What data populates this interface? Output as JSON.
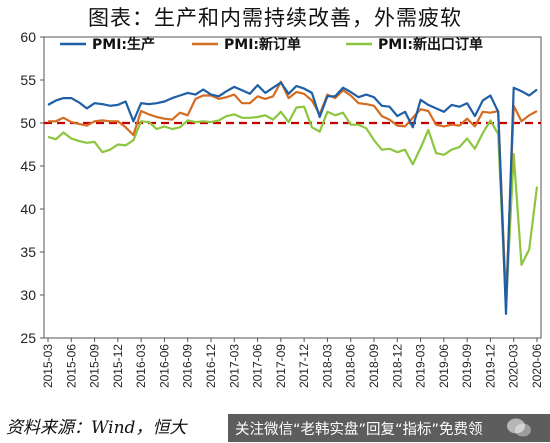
{
  "title": "图表：生产和内需持续改善，外需疲软",
  "source_text": "资料来源：Wind，恒大",
  "footer_overlay_text": "关注微信“老韩实盘”回复“指标”免费领",
  "icons": {
    "watermark": "wechat-logo-icon"
  },
  "chart_data": {
    "type": "line",
    "x": [
      "2015-03",
      "2015-04",
      "2015-05",
      "2015-06",
      "2015-07",
      "2015-08",
      "2015-09",
      "2015-10",
      "2015-11",
      "2015-12",
      "2016-01",
      "2016-02",
      "2016-03",
      "2016-04",
      "2016-05",
      "2016-06",
      "2016-07",
      "2016-08",
      "2016-09",
      "2016-10",
      "2016-11",
      "2016-12",
      "2017-01",
      "2017-02",
      "2017-03",
      "2017-04",
      "2017-05",
      "2017-06",
      "2017-07",
      "2017-08",
      "2017-09",
      "2017-10",
      "2017-11",
      "2017-12",
      "2018-01",
      "2018-02",
      "2018-03",
      "2018-04",
      "2018-05",
      "2018-06",
      "2018-07",
      "2018-08",
      "2018-09",
      "2018-10",
      "2018-11",
      "2018-12",
      "2019-01",
      "2019-02",
      "2019-03",
      "2019-04",
      "2019-05",
      "2019-06",
      "2019-07",
      "2019-08",
      "2019-09",
      "2019-10",
      "2019-11",
      "2019-12",
      "2020-01",
      "2020-02",
      "2020-03",
      "2020-04",
      "2020-05",
      "2020-06"
    ],
    "x_tick_labels": [
      "2015-03",
      "2015-06",
      "2015-09",
      "2015-12",
      "2016-03",
      "2016-06",
      "2016-09",
      "2016-12",
      "2017-03",
      "2017-06",
      "2017-09",
      "2017-12",
      "2018-03",
      "2018-06",
      "2018-09",
      "2018-12",
      "2019-03",
      "2019-06",
      "2019-09",
      "2019-12",
      "2020-03",
      "2020-06"
    ],
    "y_ticks": [
      25,
      30,
      35,
      40,
      45,
      50,
      55,
      60
    ],
    "ylim": [
      25,
      60
    ],
    "reference_line": {
      "y": 50,
      "color": "#c00000",
      "style": "dashed"
    },
    "legend_position": "top",
    "series": [
      {
        "name": "PMI:生产",
        "color": "#1f5fa5",
        "values": [
          52.1,
          52.6,
          52.9,
          52.9,
          52.4,
          51.7,
          52.3,
          52.2,
          52.0,
          52.1,
          52.5,
          50.2,
          52.3,
          52.2,
          52.3,
          52.5,
          52.9,
          53.2,
          53.5,
          53.3,
          53.9,
          53.3,
          53.1,
          53.7,
          54.2,
          53.8,
          53.4,
          54.4,
          53.5,
          54.1,
          54.7,
          53.4,
          54.3,
          54.0,
          53.5,
          50.7,
          53.1,
          53.1,
          54.1,
          53.6,
          53.0,
          53.3,
          53.0,
          52.0,
          51.9,
          50.8,
          51.3,
          49.5,
          52.7,
          52.1,
          51.7,
          51.3,
          52.1,
          51.9,
          52.3,
          50.8,
          52.6,
          53.2,
          51.3,
          27.8,
          54.1,
          53.7,
          53.2,
          53.9
        ]
      },
      {
        "name": "PMI:新订单",
        "color": "#d46c22",
        "values": [
          50.2,
          50.2,
          50.6,
          50.1,
          49.9,
          49.7,
          50.2,
          50.3,
          50.2,
          50.2,
          49.5,
          48.6,
          51.4,
          51.0,
          50.7,
          50.5,
          50.4,
          51.2,
          50.9,
          52.8,
          53.2,
          53.2,
          52.8,
          53.0,
          53.3,
          52.3,
          52.3,
          53.1,
          52.8,
          53.1,
          54.8,
          52.9,
          53.6,
          53.4,
          52.6,
          51.0,
          53.3,
          52.9,
          53.8,
          53.2,
          52.3,
          52.2,
          52.0,
          50.8,
          50.4,
          49.7,
          49.6,
          50.6,
          51.6,
          51.4,
          49.8,
          49.6,
          49.8,
          49.7,
          50.5,
          49.6,
          51.3,
          51.2,
          51.4,
          29.3,
          52.0,
          50.2,
          50.9,
          51.4
        ]
      },
      {
        "name": "PMI:新出口订单",
        "color": "#8cc63f",
        "values": [
          48.4,
          48.1,
          48.9,
          48.2,
          47.9,
          47.7,
          47.8,
          46.6,
          46.9,
          47.5,
          47.4,
          48.0,
          50.2,
          50.1,
          49.3,
          49.6,
          49.3,
          49.5,
          50.3,
          50.1,
          50.2,
          50.1,
          50.3,
          50.8,
          51.0,
          50.6,
          50.6,
          50.7,
          50.9,
          50.4,
          51.3,
          50.1,
          51.8,
          51.9,
          49.5,
          49.0,
          51.3,
          50.9,
          51.2,
          49.8,
          49.8,
          49.4,
          48.0,
          46.9,
          47.0,
          46.6,
          46.9,
          45.2,
          47.1,
          49.2,
          46.5,
          46.3,
          46.9,
          47.2,
          48.2,
          47.0,
          48.8,
          50.3,
          48.7,
          28.7,
          46.4,
          33.5,
          35.3,
          42.6
        ]
      }
    ]
  }
}
